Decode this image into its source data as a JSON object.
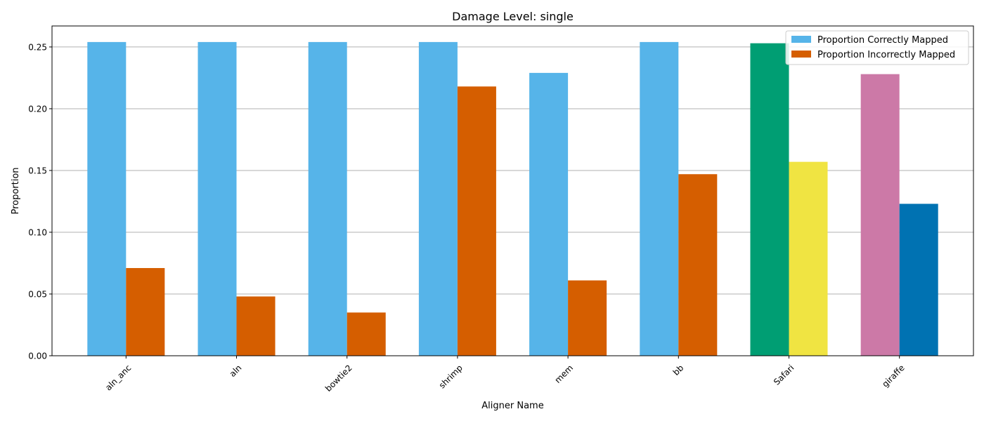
{
  "chart_data": {
    "type": "bar",
    "title": "Damage Level: single",
    "xlabel": "Aligner Name",
    "ylabel": "Proportion",
    "ylim": [
      0,
      0.267
    ],
    "yticks": [
      "0.00",
      "0.05",
      "0.10",
      "0.15",
      "0.20",
      "0.25"
    ],
    "grid": "y",
    "legend_position": "top-right",
    "categories": [
      "aln_anc",
      "aln",
      "bowtie2",
      "shrimp",
      "mem",
      "bb",
      "Safari",
      "giraffe"
    ],
    "series": [
      {
        "name": "Proportion Correctly Mapped",
        "color": "#56B4E9",
        "values": [
          0.254,
          0.254,
          0.254,
          0.254,
          0.229,
          0.254,
          0.253,
          0.228
        ],
        "bar_colors": [
          "#56B4E9",
          "#56B4E9",
          "#56B4E9",
          "#56B4E9",
          "#56B4E9",
          "#56B4E9",
          "#009E73",
          "#CC79A7"
        ]
      },
      {
        "name": "Proportion Incorrectly Mapped",
        "color": "#D55E00",
        "values": [
          0.071,
          0.048,
          0.035,
          0.218,
          0.061,
          0.147,
          0.157,
          0.123
        ],
        "bar_colors": [
          "#D55E00",
          "#D55E00",
          "#D55E00",
          "#D55E00",
          "#D55E00",
          "#D55E00",
          "#F0E442",
          "#0072B2"
        ]
      }
    ]
  }
}
